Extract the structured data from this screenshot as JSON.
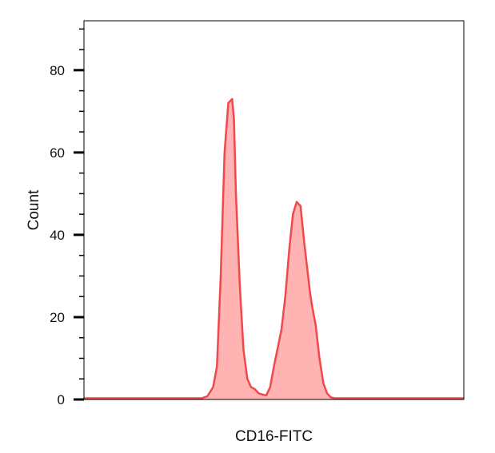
{
  "chart_data": {
    "type": "area",
    "title": "",
    "xlabel": "CD16-FITC",
    "ylabel": "Count",
    "ylim": [
      0,
      92
    ],
    "xlim": [
      0,
      100
    ],
    "y_major_ticks": [
      0,
      20,
      40,
      60,
      80
    ],
    "y_minor_step": 5,
    "x_tick_labels": false,
    "grid": false,
    "legend": "none",
    "series": [
      {
        "fill_color": "#ffb3b3",
        "line_color": "#f0494b",
        "x": [
          0,
          25,
          31,
          32.5,
          34,
          35,
          36,
          37,
          38,
          39,
          39.5,
          40,
          41,
          42,
          43,
          44,
          45,
          46,
          47,
          48,
          49,
          50,
          52,
          53,
          54,
          55,
          56,
          57,
          58,
          59,
          59.5,
          60,
          61,
          62,
          63,
          64,
          65,
          66,
          67,
          68,
          69,
          70,
          71,
          72,
          100
        ],
        "values": [
          0.3,
          0.3,
          0.3,
          0.8,
          3,
          8,
          30,
          60,
          72,
          73,
          68,
          50,
          28,
          12,
          5,
          3,
          2.5,
          1.5,
          1.2,
          1,
          3,
          8,
          17,
          25,
          36,
          45,
          48,
          47,
          38,
          30,
          26,
          23,
          18,
          10,
          4,
          1.5,
          0.5,
          0.3,
          0.3,
          0.3,
          0.3,
          0.3,
          0.3,
          0.3,
          0.3
        ]
      }
    ]
  }
}
